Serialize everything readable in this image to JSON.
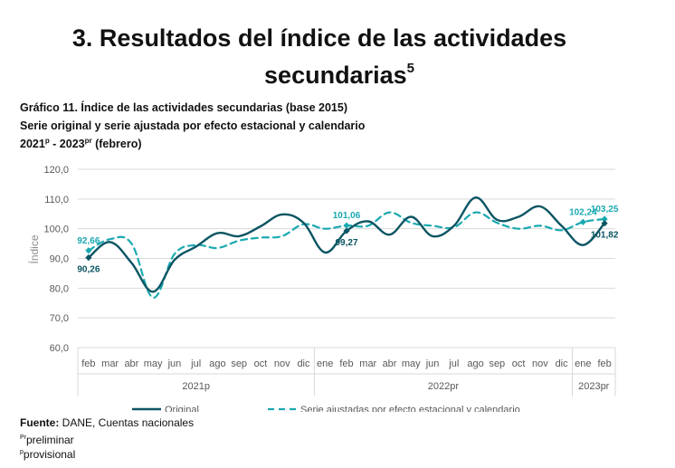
{
  "heading": {
    "line1": "3. Resultados del índice de las actividades",
    "line2": "secundarias",
    "footnote_mark": "5"
  },
  "chart_caption": {
    "line1": "Gráfico 11. Índice de las actividades secundarias (base 2015)",
    "line2": "Serie original y serie ajustada por efecto estacional y calendario",
    "line3_a": "2021",
    "line3_sup_a": "p",
    "line3_b": " - 2023",
    "line3_sup_b": "pr",
    "line3_c": " (febrero)"
  },
  "footer": {
    "source_label": "Fuente:",
    "source_text": " DANE, Cuentas nacionales",
    "note1_mark": "Pr",
    "note1_text": "preliminar",
    "note2_mark": "p",
    "note2_text": "provisional"
  },
  "colors": {
    "original": "#0b5563",
    "adjusted": "#1aa9b0",
    "grid": "#d9d9d9",
    "axis_text": "#595959"
  },
  "chart_data": {
    "type": "line",
    "title": "Índice de las actividades secundarias (base 2015)",
    "ylabel": "Índice",
    "ylim": [
      60,
      120
    ],
    "yticks": [
      "60,0",
      "70,0",
      "80,0",
      "90,0",
      "100,0",
      "110,0",
      "120,0"
    ],
    "categories": [
      "feb",
      "mar",
      "abr",
      "may",
      "jun",
      "jul",
      "ago",
      "sep",
      "oct",
      "nov",
      "dic",
      "ene",
      "feb",
      "mar",
      "abr",
      "may",
      "jun",
      "jul",
      "ago",
      "sep",
      "oct",
      "nov",
      "dic",
      "ene",
      "feb"
    ],
    "year_groups": [
      {
        "label": "2021p",
        "start": 0,
        "end": 10
      },
      {
        "label": "2022pr",
        "start": 11,
        "end": 22
      },
      {
        "label": "2023pr",
        "start": 23,
        "end": 24
      }
    ],
    "series": [
      {
        "name": "Original",
        "style": "solid",
        "values": [
          90.26,
          95.5,
          88.5,
          78.8,
          89.5,
          94.0,
          98.5,
          97.5,
          100.8,
          104.8,
          102.0,
          92.0,
          99.27,
          102.5,
          98.0,
          104.0,
          97.5,
          101.0,
          110.5,
          103.0,
          104.0,
          107.5,
          101.0,
          94.5,
          101.82
        ]
      },
      {
        "name": "Serie ajustadas por efecto estacional y calendario",
        "style": "dashed",
        "values": [
          92.66,
          96.5,
          95.0,
          76.8,
          91.5,
          94.5,
          93.5,
          96.0,
          97.0,
          97.5,
          101.5,
          100.0,
          101.06,
          101.0,
          105.5,
          102.0,
          101.0,
          100.5,
          105.5,
          102.0,
          100.0,
          101.0,
          99.5,
          102.24,
          103.25
        ]
      }
    ],
    "data_labels": [
      {
        "series": 0,
        "index": 0,
        "text": "90,26",
        "pos": "below"
      },
      {
        "series": 1,
        "index": 0,
        "text": "92,66",
        "pos": "above"
      },
      {
        "series": 0,
        "index": 12,
        "text": "99,27",
        "pos": "below"
      },
      {
        "series": 1,
        "index": 12,
        "text": "101,06",
        "pos": "above"
      },
      {
        "series": 1,
        "index": 23,
        "text": "102,24",
        "pos": "above"
      },
      {
        "series": 1,
        "index": 24,
        "text": "103,25",
        "pos": "above"
      },
      {
        "series": 0,
        "index": 24,
        "text": "101,82",
        "pos": "below"
      }
    ],
    "legend": {
      "position": "bottom",
      "items": [
        "Original",
        "Serie ajustadas por efecto estacional y calendario"
      ]
    }
  }
}
